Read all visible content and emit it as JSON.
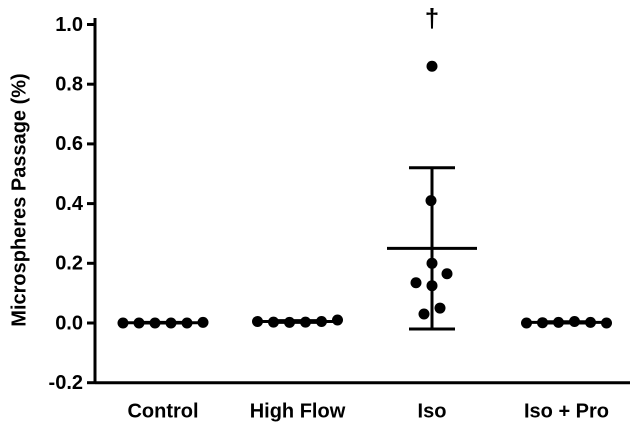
{
  "chart_data": {
    "type": "dot",
    "y_label": "Microspheres Passage (%)",
    "categories": [
      "Control",
      "High Flow",
      "Iso",
      "Iso + Pro"
    ],
    "points": [
      [
        0,
        0,
        0,
        0,
        0,
        0.002
      ],
      [
        0.005,
        0.003,
        0.002,
        0.003,
        0.005,
        0.01
      ],
      [
        0.86,
        0.41,
        0.2,
        0.165,
        0.135,
        0.125,
        0.05,
        0.03
      ],
      [
        0,
        0.001,
        0.002,
        0.005,
        0.002,
        0
      ]
    ],
    "means": [
      0.001,
      0.005,
      0.25,
      0.002
    ],
    "errors": [
      0.001,
      0.003,
      0.27,
      0.002
    ],
    "annotation": "†",
    "annotation_category": 2,
    "color": "#000000",
    "ylim": [
      -0.2,
      1.0
    ],
    "yticks": [
      -0.2,
      {
        "value": 0,
        "label": "0.0"
      },
      0.2,
      0.4,
      0.6,
      0.8,
      {
        "value": 1,
        "label": "1.0"
      }
    ]
  }
}
